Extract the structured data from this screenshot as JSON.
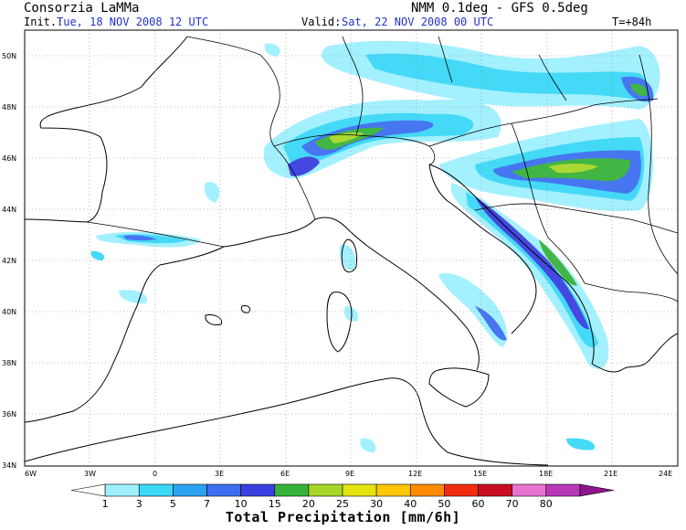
{
  "header": {
    "producer": "Consorzia LaMMa",
    "model": "NMM 0.1deg - GFS 0.5deg",
    "init_label": "Init.:",
    "init_value": "Tue, 18 NOV 2008   12 UTC",
    "valid_label": "Valid:",
    "valid_value": "Sat, 22 NOV 2008   00 UTC",
    "lead_time": "T=+84h"
  },
  "axes": {
    "lat_labels": [
      "50N",
      "48N",
      "46N",
      "44N",
      "42N",
      "40N",
      "38N",
      "36N",
      "34N"
    ],
    "lon_labels": [
      "6W",
      "3W",
      "0",
      "3E",
      "6E",
      "9E",
      "12E",
      "15E",
      "18E",
      "21E",
      "24E"
    ],
    "lat_range": [
      34,
      51
    ],
    "lon_range": [
      -6,
      24
    ]
  },
  "colorbar": {
    "values": [
      "1",
      "3",
      "5",
      "7",
      "10",
      "15",
      "20",
      "25",
      "30",
      "40",
      "50",
      "60",
      "70",
      "80"
    ],
    "colors": [
      "#ffffff",
      "#9ff0ff",
      "#3ad7f7",
      "#2ba3f0",
      "#3d6ff0",
      "#3b3fe0",
      "#37b33a",
      "#a7d628",
      "#e3e30e",
      "#ffc800",
      "#ff8c00",
      "#f22c10",
      "#c80e20",
      "#e873d0",
      "#b838b8",
      "#8c148c"
    ],
    "title": "Total Precipitation [mm/6h]"
  }
}
